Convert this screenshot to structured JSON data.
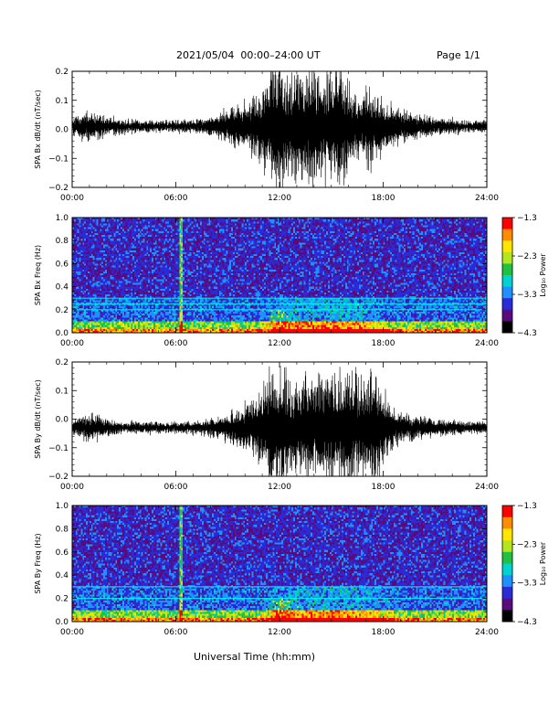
{
  "header": {
    "title": "2021/05/04  00:00–24:00 UT",
    "page": "Page 1/1"
  },
  "x_axis_title": "Universal Time (hh:mm)",
  "colors": {
    "trace": "#000000",
    "colormap": [
      "#000000",
      "#5a0a7a",
      "#2a2ad8",
      "#1e90ff",
      "#00d2d2",
      "#20c040",
      "#b4e61e",
      "#ffe600",
      "#ff8c00",
      "#ff0000"
    ]
  },
  "chart_data": [
    {
      "type": "line",
      "ylabel": "SPA Bx dB/dt (nT/sec)",
      "xlim": [
        0,
        24
      ],
      "ylim": [
        -0.2,
        0.2
      ],
      "xticks": [
        "00:00",
        "06:00",
        "12:00",
        "18:00",
        "24:00"
      ],
      "yticks": [
        "−0.2",
        "−0.1",
        "0.0",
        "0.1",
        "0.2"
      ],
      "grid": false,
      "series": [
        {
          "envelope_hours": [
            0,
            1,
            2,
            3,
            4,
            5,
            6,
            7,
            8,
            9,
            10,
            11,
            11.5,
            12,
            12.5,
            13,
            13.5,
            14,
            14.5,
            15,
            15.5,
            16,
            16.5,
            17,
            17.5,
            18,
            19,
            20,
            21,
            22,
            23,
            24
          ],
          "envelope_amplitude": [
            0.03,
            0.05,
            0.03,
            0.025,
            0.02,
            0.02,
            0.02,
            0.02,
            0.03,
            0.06,
            0.08,
            0.12,
            0.21,
            0.21,
            0.15,
            0.17,
            0.21,
            0.19,
            0.16,
            0.19,
            0.2,
            0.15,
            0.1,
            0.14,
            0.12,
            0.09,
            0.06,
            0.04,
            0.03,
            0.025,
            0.02,
            0.02
          ],
          "baseline": 0.01
        }
      ]
    },
    {
      "type": "heatmap",
      "ylabel": "SPA Bx Freq (Hz)",
      "xlim": [
        0,
        24
      ],
      "ylim": [
        0,
        1
      ],
      "xticks": [
        "00:00",
        "06:00",
        "12:00",
        "18:00",
        "24:00"
      ],
      "yticks": [
        "0.0",
        "0.2",
        "0.4",
        "0.6",
        "0.8",
        "1.0"
      ],
      "colorbar": {
        "label": "Log₁₀ Power",
        "range": [
          -4.3,
          -1.3
        ],
        "ticks": [
          "−1.3",
          "−2.3",
          "−3.3",
          "−4.3"
        ]
      },
      "features": {
        "horizontal_lines_hz": [
          0.3,
          0.25,
          0.2
        ],
        "vertical_line_hour": 6.3,
        "low_freq_band_hz": 0.1,
        "storm_hours": [
          11,
          19
        ]
      }
    },
    {
      "type": "line",
      "ylabel": "SPA By dB/dt (nT/sec)",
      "xlim": [
        0,
        24
      ],
      "ylim": [
        -0.2,
        0.2
      ],
      "xticks": [
        "00:00",
        "06:00",
        "12:00",
        "18:00",
        "24:00"
      ],
      "yticks": [
        "−0.2",
        "−0.1",
        "0.0",
        "0.1",
        "0.2"
      ],
      "grid": false,
      "series": [
        {
          "envelope_hours": [
            0,
            1,
            2,
            3,
            4,
            5,
            6,
            7,
            8,
            9,
            10,
            11,
            11.5,
            12,
            12.5,
            13,
            13.5,
            14,
            14.5,
            15,
            15.5,
            16,
            16.5,
            17,
            17.5,
            18,
            18.5,
            19,
            20,
            21,
            22,
            23,
            24
          ],
          "envelope_amplitude": [
            0.025,
            0.05,
            0.03,
            0.02,
            0.02,
            0.02,
            0.02,
            0.02,
            0.03,
            0.05,
            0.08,
            0.12,
            0.21,
            0.21,
            0.18,
            0.14,
            0.2,
            0.17,
            0.15,
            0.2,
            0.18,
            0.2,
            0.17,
            0.15,
            0.2,
            0.12,
            0.08,
            0.05,
            0.04,
            0.03,
            0.025,
            0.02,
            0.02
          ],
          "baseline": -0.03
        }
      ]
    },
    {
      "type": "heatmap",
      "ylabel": "SPA By Freq (Hz)",
      "xlim": [
        0,
        24
      ],
      "ylim": [
        0,
        1
      ],
      "xticks": [
        "00:00",
        "06:00",
        "12:00",
        "18:00",
        "24:00"
      ],
      "yticks": [
        "0.0",
        "0.2",
        "0.4",
        "0.6",
        "0.8",
        "1.0"
      ],
      "colorbar": {
        "label": "Log₁₀ Power",
        "range": [
          -4.3,
          -1.3
        ],
        "ticks": [
          "−1.3",
          "−2.3",
          "−3.3",
          "−4.3"
        ]
      },
      "features": {
        "horizontal_lines_hz": [
          0.3,
          0.2
        ],
        "vertical_line_hour": 6.3,
        "low_freq_band_hz": 0.1,
        "storm_hours": [
          11,
          19
        ]
      }
    }
  ]
}
